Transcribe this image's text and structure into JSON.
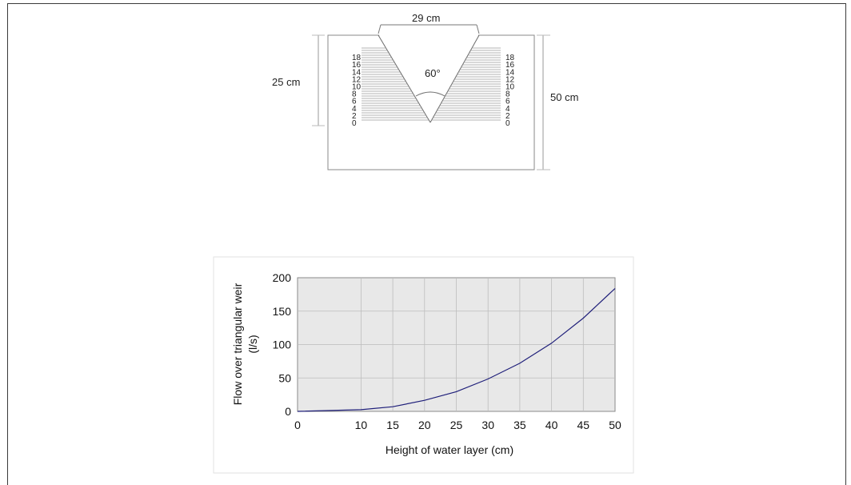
{
  "weir": {
    "top_width_label": "29 cm",
    "depth_label": "25 cm",
    "height_label": "50 cm",
    "angle_label": "60°",
    "scale_marks": [
      "0",
      "2",
      "4",
      "6",
      "8",
      "10",
      "12",
      "14",
      "16",
      "18"
    ]
  },
  "chart_data": {
    "type": "line",
    "title": "",
    "xlabel": "Height of water layer (cm)",
    "ylabel": "Flow over triangular weir (l/s)",
    "ylabel_lines": [
      "Flow over triangular weir",
      "(l/s)"
    ],
    "xlim": [
      0,
      50
    ],
    "ylim": [
      0,
      200
    ],
    "xticks": [
      0,
      10,
      15,
      20,
      25,
      30,
      35,
      40,
      45,
      50
    ],
    "yticks": [
      0,
      50,
      100,
      150,
      200
    ],
    "grid": true,
    "legend": "none",
    "series": [
      {
        "color": "#1f1f7a",
        "x": [
          0,
          10,
          15,
          20,
          25,
          30,
          35,
          40,
          45,
          50
        ],
        "y": [
          0,
          2.5,
          7,
          16.5,
          29.5,
          48.5,
          72,
          102,
          139.5,
          184
        ]
      }
    ]
  }
}
